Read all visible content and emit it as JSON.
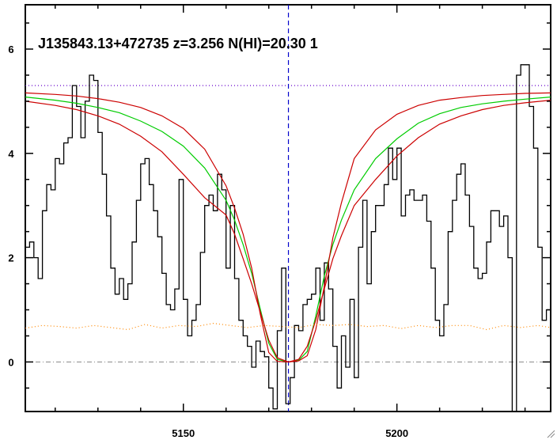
{
  "chart_data": {
    "type": "line",
    "title": "J135843.13+472735 z=3.256 N(HI)=20.30 1",
    "xlabel": "",
    "ylabel": "",
    "xlim": [
      5113,
      5236
    ],
    "ylim": [
      -0.95,
      6.85
    ],
    "x_ticks": [
      {
        "value": 5150,
        "label": "5150"
      },
      {
        "value": 5200,
        "label": "5200"
      }
    ],
    "y_ticks": [
      {
        "value": 0,
        "label": "0"
      },
      {
        "value": 2,
        "label": "2"
      },
      {
        "value": 4,
        "label": "4"
      },
      {
        "value": 6,
        "label": "6"
      }
    ],
    "grid": false,
    "legend": "none",
    "line_center": 5174.6,
    "continuum_level": 5.3,
    "zero_level": 0,
    "colors": {
      "flux": "#000000",
      "model_best": "#00cc00",
      "model_bounds": "#cc0000",
      "marker": "#0000cc",
      "continuum": "#6600cc",
      "error": "#ff8800",
      "zero": "#888888"
    },
    "series": [
      {
        "role": "observed-flux",
        "style": "step",
        "x": [
          5113,
          5114,
          5115,
          5116,
          5117,
          5118,
          5119,
          5120,
          5121,
          5122,
          5123,
          5124,
          5125,
          5126,
          5127,
          5128,
          5129,
          5130,
          5131,
          5132,
          5133,
          5134,
          5135,
          5136,
          5137,
          5138,
          5139,
          5140,
          5141,
          5142,
          5143,
          5144,
          5145,
          5146,
          5147,
          5148,
          5149,
          5150,
          5151,
          5152,
          5153,
          5154,
          5155,
          5156,
          5157,
          5158,
          5159,
          5160,
          5161,
          5162,
          5163,
          5164,
          5165,
          5166,
          5167,
          5168,
          5169,
          5170,
          5171,
          5172,
          5173,
          5174,
          5175,
          5176,
          5177,
          5178,
          5179,
          5180,
          5181,
          5182,
          5183,
          5184,
          5185,
          5186,
          5187,
          5188,
          5189,
          5190,
          5191,
          5192,
          5193,
          5194,
          5195,
          5196,
          5197,
          5198,
          5199,
          5200,
          5201,
          5202,
          5203,
          5204,
          5205,
          5206,
          5207,
          5208,
          5209,
          5210,
          5211,
          5212,
          5213,
          5214,
          5215,
          5216,
          5217,
          5218,
          5219,
          5220,
          5221,
          5222,
          5223,
          5224,
          5225,
          5226,
          5227,
          5228,
          5229,
          5230,
          5231,
          5232,
          5233,
          5234,
          5235
        ],
        "y": [
          2.2,
          2.3,
          2.0,
          1.6,
          2.9,
          3.4,
          3.3,
          3.9,
          3.8,
          4.2,
          4.3,
          5.3,
          4.9,
          4.3,
          5.0,
          5.5,
          5.4,
          4.4,
          3.6,
          2.8,
          1.8,
          1.3,
          1.6,
          1.2,
          1.5,
          2.3,
          3.1,
          3.8,
          3.9,
          3.4,
          2.9,
          2.4,
          1.7,
          1.1,
          1.0,
          1.4,
          3.5,
          1.2,
          0.5,
          0.8,
          1.1,
          2.1,
          3.0,
          3.2,
          2.9,
          3.6,
          3.3,
          1.8,
          3.0,
          1.6,
          0.8,
          0.5,
          0.3,
          -0.1,
          0.4,
          0.2,
          0.1,
          -0.5,
          -0.9,
          0.6,
          1.8,
          -0.8,
          -0.3,
          0.7,
          0.6,
          1.1,
          1.2,
          1.3,
          1.8,
          0.8,
          1.9,
          1.4,
          0.3,
          -0.5,
          0.5,
          -0.1,
          1.2,
          -0.3,
          2.2,
          3.1,
          1.5,
          2.5,
          3.0,
          3.0,
          3.4,
          4.1,
          3.5,
          4.1,
          2.8,
          3.2,
          3.3,
          3.1,
          3.1,
          3.2,
          2.7,
          1.8,
          0.8,
          0.5,
          1.1,
          2.5,
          3.1,
          3.6,
          3.8,
          3.2,
          2.6,
          1.8,
          1.6,
          1.7,
          2.3,
          2.9,
          2.9,
          2.6,
          2.8,
          2.0,
          -1.0,
          5.5,
          5.7,
          5.7,
          4.9,
          4.1,
          2.2,
          0.8,
          1.0
        ]
      },
      {
        "role": "voigt-best-fit",
        "style": "line",
        "x": [
          5113,
          5120,
          5125,
          5130,
          5135,
          5140,
          5145,
          5150,
          5155,
          5160,
          5162,
          5164,
          5166,
          5168,
          5170,
          5172,
          5174.6,
          5177,
          5179,
          5181,
          5183,
          5185,
          5187,
          5190,
          5195,
          5200,
          5205,
          5210,
          5215,
          5220,
          5225,
          5230,
          5236
        ],
        "y": [
          5.08,
          5.02,
          4.96,
          4.88,
          4.78,
          4.62,
          4.42,
          4.14,
          3.72,
          3.1,
          2.72,
          2.25,
          1.7,
          1.02,
          0.36,
          0.05,
          0.0,
          0.03,
          0.2,
          0.88,
          1.65,
          2.25,
          2.72,
          3.3,
          3.9,
          4.28,
          4.58,
          4.76,
          4.88,
          4.95,
          5.0,
          5.04,
          5.08
        ]
      },
      {
        "role": "voigt-upper-bound",
        "style": "line",
        "x": [
          5113,
          5120,
          5125,
          5130,
          5135,
          5140,
          5145,
          5150,
          5155,
          5160,
          5162,
          5164,
          5166,
          5168,
          5170,
          5172,
          5174.6,
          5177,
          5179,
          5181,
          5183,
          5185,
          5187,
          5190,
          5195,
          5200,
          5205,
          5210,
          5215,
          5220,
          5225,
          5230,
          5236
        ],
        "y": [
          5.16,
          5.13,
          5.1,
          5.05,
          4.98,
          4.88,
          4.72,
          4.48,
          4.08,
          3.38,
          2.95,
          2.45,
          1.8,
          0.92,
          0.18,
          0.01,
          0.0,
          0.02,
          0.12,
          0.62,
          1.45,
          2.38,
          3.05,
          3.9,
          4.45,
          4.75,
          4.92,
          5.02,
          5.07,
          5.11,
          5.13,
          5.15,
          5.16
        ]
      },
      {
        "role": "voigt-lower-bound",
        "style": "line",
        "x": [
          5113,
          5120,
          5125,
          5130,
          5135,
          5140,
          5145,
          5150,
          5155,
          5160,
          5162,
          5164,
          5166,
          5168,
          5170,
          5172,
          5174.6,
          5177,
          5179,
          5181,
          5183,
          5185,
          5187,
          5190,
          5195,
          5200,
          5205,
          5210,
          5215,
          5220,
          5225,
          5230,
          5236
        ],
        "y": [
          5.0,
          4.92,
          4.84,
          4.72,
          4.56,
          4.33,
          4.03,
          3.6,
          3.15,
          2.82,
          2.45,
          1.98,
          1.5,
          0.96,
          0.42,
          0.08,
          0.0,
          0.05,
          0.3,
          0.8,
          1.4,
          1.98,
          2.42,
          3.0,
          3.5,
          3.95,
          4.3,
          4.56,
          4.72,
          4.84,
          4.92,
          4.97,
          5.02
        ]
      },
      {
        "role": "flux-error",
        "style": "dotted",
        "x": [
          5113,
          5117,
          5121,
          5125,
          5129,
          5133,
          5137,
          5141,
          5145,
          5149,
          5153,
          5157,
          5161,
          5165,
          5169,
          5173,
          5177,
          5181,
          5185,
          5189,
          5193,
          5197,
          5201,
          5205,
          5209,
          5213,
          5217,
          5221,
          5225,
          5229,
          5233,
          5236
        ],
        "y": [
          0.65,
          0.7,
          0.68,
          0.65,
          0.7,
          0.66,
          0.62,
          0.72,
          0.65,
          0.7,
          0.68,
          0.74,
          0.7,
          0.66,
          0.7,
          0.68,
          0.66,
          0.72,
          0.7,
          0.72,
          0.68,
          0.7,
          0.64,
          0.7,
          0.66,
          0.7,
          0.7,
          0.62,
          0.7,
          0.66,
          0.7,
          0.66
        ]
      }
    ]
  }
}
